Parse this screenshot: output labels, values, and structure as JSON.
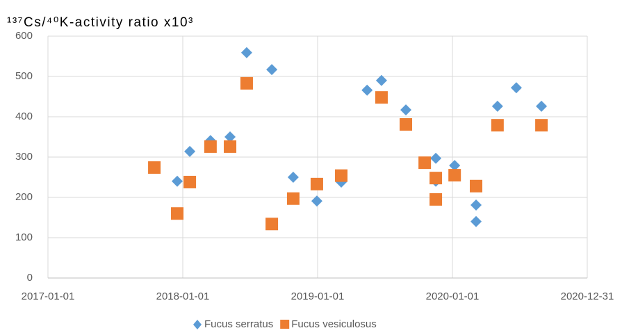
{
  "chart_data": {
    "type": "scatter",
    "title": "¹³⁷Cs/⁴⁰K-activity ratio x10³",
    "xlim": [
      "2017-01-01",
      "2020-12-31"
    ],
    "xticks": [
      "2017-01-01",
      "2018-01-01",
      "2019-01-01",
      "2020-01-01",
      "2020-12-31"
    ],
    "ylim": [
      0,
      600
    ],
    "yticks": [
      0,
      100,
      200,
      300,
      400,
      500,
      600
    ],
    "grid": true,
    "legend": "bottom",
    "series": [
      {
        "name": "Fucus serratus",
        "color": "#5b9bd5",
        "marker": "diamond",
        "x": [
          "2017-12-17",
          "2018-01-20",
          "2018-03-17",
          "2018-05-09",
          "2018-06-23",
          "2018-08-30",
          "2018-10-27",
          "2018-12-30",
          "2019-03-06",
          "2019-05-15",
          "2019-06-23",
          "2019-08-28",
          "2019-11-17",
          "2019-11-17",
          "2020-01-07",
          "2020-03-05",
          "2020-03-05",
          "2020-05-02",
          "2020-06-22",
          "2020-08-29"
        ],
        "values": [
          240,
          314,
          341,
          350,
          559,
          517,
          250,
          191,
          238,
          466,
          490,
          417,
          297,
          240,
          279,
          181,
          140,
          426,
          472,
          426
        ]
      },
      {
        "name": "Fucus vesiculosus",
        "color": "#ed7d31",
        "marker": "square",
        "x": [
          "2017-10-16",
          "2017-12-17",
          "2018-01-20",
          "2018-03-17",
          "2018-05-09",
          "2018-06-23",
          "2018-08-30",
          "2018-10-27",
          "2018-12-30",
          "2019-03-06",
          "2019-06-23",
          "2019-08-28",
          "2019-10-18",
          "2019-11-17",
          "2019-11-17",
          "2020-01-07",
          "2020-03-05",
          "2020-05-02",
          "2020-08-29"
        ],
        "values": [
          274,
          160,
          238,
          326,
          326,
          483,
          134,
          197,
          233,
          254,
          448,
          381,
          286,
          248,
          195,
          255,
          228,
          379,
          379
        ]
      }
    ]
  }
}
